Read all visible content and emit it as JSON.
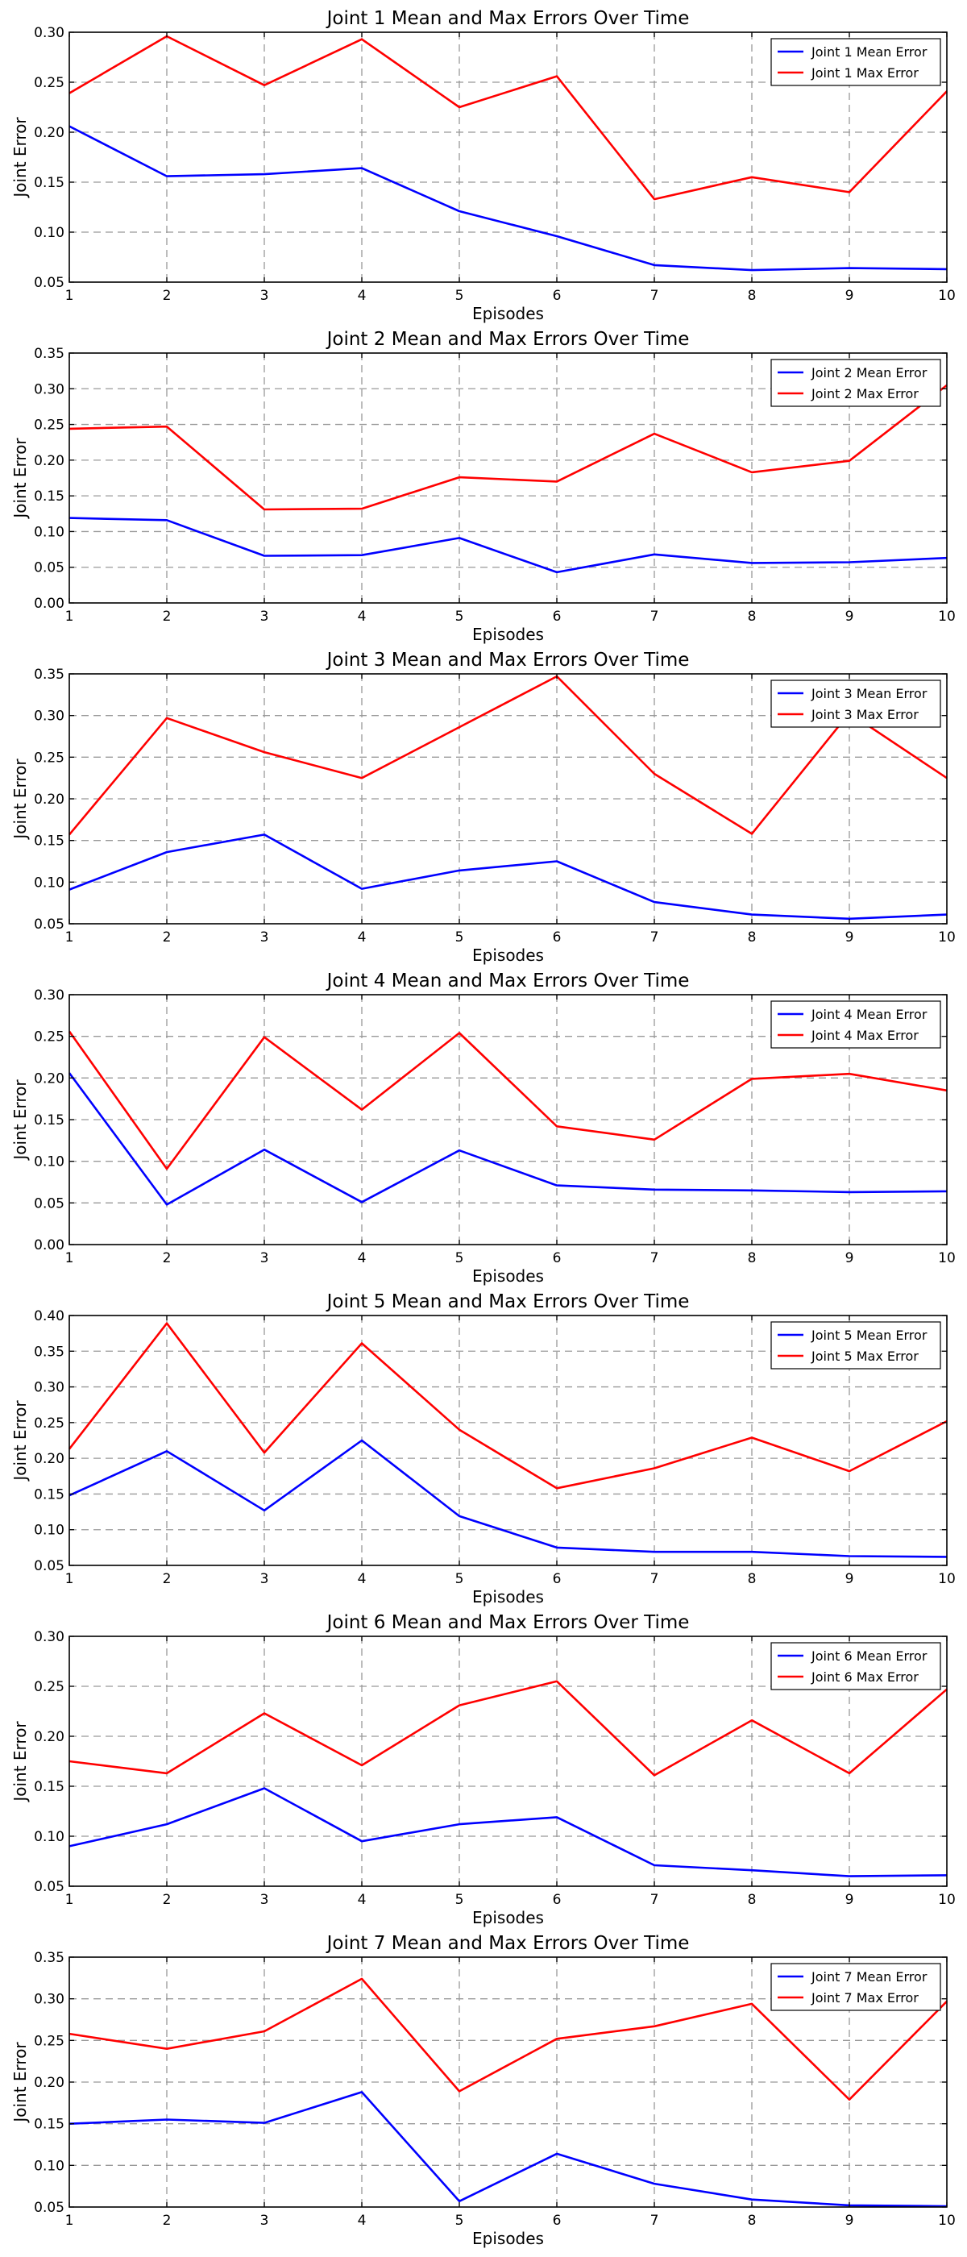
{
  "chart_data": [
    {
      "type": "line",
      "title": "Joint 1 Mean and Max Errors Over Time",
      "xlabel": "Episodes",
      "ylabel": "Joint Error",
      "x": [
        1,
        2,
        3,
        4,
        5,
        6,
        7,
        8,
        9,
        10
      ],
      "xlim": [
        1,
        10
      ],
      "ylim": [
        0.05,
        0.3
      ],
      "yticks": [
        "0.05",
        "0.10",
        "0.15",
        "0.20",
        "0.25",
        "0.30"
      ],
      "grid": true,
      "legend_position": "top-right",
      "series": [
        {
          "name": "Joint 1 Mean Error",
          "color": "#0000ff",
          "values": [
            0.206,
            0.156,
            0.158,
            0.164,
            0.121,
            0.096,
            0.067,
            0.062,
            0.064,
            0.063
          ]
        },
        {
          "name": "Joint 1 Max Error",
          "color": "#ff0000",
          "values": [
            0.239,
            0.296,
            0.247,
            0.293,
            0.225,
            0.256,
            0.133,
            0.155,
            0.14,
            0.241
          ]
        }
      ]
    },
    {
      "type": "line",
      "title": "Joint 2 Mean and Max Errors Over Time",
      "xlabel": "Episodes",
      "ylabel": "Joint Error",
      "x": [
        1,
        2,
        3,
        4,
        5,
        6,
        7,
        8,
        9,
        10
      ],
      "xlim": [
        1,
        10
      ],
      "ylim": [
        0.0,
        0.35
      ],
      "yticks": [
        "0.00",
        "0.05",
        "0.10",
        "0.15",
        "0.20",
        "0.25",
        "0.30",
        "0.35"
      ],
      "grid": true,
      "legend_position": "top-right",
      "series": [
        {
          "name": "Joint 2 Mean Error",
          "color": "#0000ff",
          "values": [
            0.119,
            0.116,
            0.066,
            0.067,
            0.091,
            0.043,
            0.068,
            0.056,
            0.057,
            0.063
          ]
        },
        {
          "name": "Joint 2 Max Error",
          "color": "#ff0000",
          "values": [
            0.244,
            0.247,
            0.131,
            0.132,
            0.176,
            0.17,
            0.237,
            0.183,
            0.199,
            0.305
          ]
        }
      ]
    },
    {
      "type": "line",
      "title": "Joint 3 Mean and Max Errors Over Time",
      "xlabel": "Episodes",
      "ylabel": "Joint Error",
      "x": [
        1,
        2,
        3,
        4,
        5,
        6,
        7,
        8,
        9,
        10
      ],
      "xlim": [
        1,
        10
      ],
      "ylim": [
        0.05,
        0.35
      ],
      "yticks": [
        "0.05",
        "0.10",
        "0.15",
        "0.20",
        "0.25",
        "0.30",
        "0.35"
      ],
      "grid": true,
      "legend_position": "top-right",
      "series": [
        {
          "name": "Joint 3 Mean Error",
          "color": "#0000ff",
          "values": [
            0.091,
            0.136,
            0.157,
            0.092,
            0.114,
            0.125,
            0.076,
            0.061,
            0.056,
            0.061
          ]
        },
        {
          "name": "Joint 3 Max Error",
          "color": "#ff0000",
          "values": [
            0.157,
            0.297,
            0.256,
            0.225,
            0.286,
            0.347,
            0.23,
            0.158,
            0.303,
            0.225
          ]
        }
      ]
    },
    {
      "type": "line",
      "title": "Joint 4 Mean and Max Errors Over Time",
      "xlabel": "Episodes",
      "ylabel": "Joint Error",
      "x": [
        1,
        2,
        3,
        4,
        5,
        6,
        7,
        8,
        9,
        10
      ],
      "xlim": [
        1,
        10
      ],
      "ylim": [
        0.0,
        0.3
      ],
      "yticks": [
        "0.00",
        "0.05",
        "0.10",
        "0.15",
        "0.20",
        "0.25",
        "0.30"
      ],
      "grid": true,
      "legend_position": "top-right",
      "series": [
        {
          "name": "Joint 4 Mean Error",
          "color": "#0000ff",
          "values": [
            0.206,
            0.048,
            0.114,
            0.051,
            0.113,
            0.071,
            0.066,
            0.065,
            0.063,
            0.064
          ]
        },
        {
          "name": "Joint 4 Max Error",
          "color": "#ff0000",
          "values": [
            0.256,
            0.091,
            0.249,
            0.162,
            0.254,
            0.142,
            0.126,
            0.199,
            0.205,
            0.185
          ]
        }
      ]
    },
    {
      "type": "line",
      "title": "Joint 5 Mean and Max Errors Over Time",
      "xlabel": "Episodes",
      "ylabel": "Joint Error",
      "x": [
        1,
        2,
        3,
        4,
        5,
        6,
        7,
        8,
        9,
        10
      ],
      "xlim": [
        1,
        10
      ],
      "ylim": [
        0.05,
        0.4
      ],
      "yticks": [
        "0.05",
        "0.10",
        "0.15",
        "0.20",
        "0.25",
        "0.30",
        "0.35",
        "0.40"
      ],
      "grid": true,
      "legend_position": "top-right",
      "series": [
        {
          "name": "Joint 5 Mean Error",
          "color": "#0000ff",
          "values": [
            0.148,
            0.21,
            0.127,
            0.225,
            0.119,
            0.075,
            0.069,
            0.069,
            0.063,
            0.062
          ]
        },
        {
          "name": "Joint 5 Max Error",
          "color": "#ff0000",
          "values": [
            0.213,
            0.389,
            0.208,
            0.361,
            0.24,
            0.158,
            0.186,
            0.229,
            0.182,
            0.252
          ]
        }
      ]
    },
    {
      "type": "line",
      "title": "Joint 6 Mean and Max Errors Over Time",
      "xlabel": "Episodes",
      "ylabel": "Joint Error",
      "x": [
        1,
        2,
        3,
        4,
        5,
        6,
        7,
        8,
        9,
        10
      ],
      "xlim": [
        1,
        10
      ],
      "ylim": [
        0.05,
        0.3
      ],
      "yticks": [
        "0.05",
        "0.10",
        "0.15",
        "0.20",
        "0.25",
        "0.30"
      ],
      "grid": true,
      "legend_position": "top-right",
      "series": [
        {
          "name": "Joint 6 Mean Error",
          "color": "#0000ff",
          "values": [
            0.09,
            0.112,
            0.148,
            0.095,
            0.112,
            0.119,
            0.071,
            0.066,
            0.06,
            0.061
          ]
        },
        {
          "name": "Joint 6 Max Error",
          "color": "#ff0000",
          "values": [
            0.175,
            0.163,
            0.223,
            0.171,
            0.231,
            0.255,
            0.161,
            0.216,
            0.163,
            0.247
          ]
        }
      ]
    },
    {
      "type": "line",
      "title": "Joint 7 Mean and Max Errors Over Time",
      "xlabel": "Episodes",
      "ylabel": "Joint Error",
      "x": [
        1,
        2,
        3,
        4,
        5,
        6,
        7,
        8,
        9,
        10
      ],
      "xlim": [
        1,
        10
      ],
      "ylim": [
        0.05,
        0.35
      ],
      "yticks": [
        "0.05",
        "0.10",
        "0.15",
        "0.20",
        "0.25",
        "0.30",
        "0.35"
      ],
      "grid": true,
      "legend_position": "top-right",
      "series": [
        {
          "name": "Joint 7 Mean Error",
          "color": "#0000ff",
          "values": [
            0.15,
            0.155,
            0.151,
            0.188,
            0.057,
            0.114,
            0.078,
            0.059,
            0.052,
            0.051
          ]
        },
        {
          "name": "Joint 7 Max Error",
          "color": "#ff0000",
          "values": [
            0.258,
            0.24,
            0.261,
            0.324,
            0.189,
            0.252,
            0.267,
            0.294,
            0.179,
            0.297
          ]
        }
      ]
    }
  ]
}
